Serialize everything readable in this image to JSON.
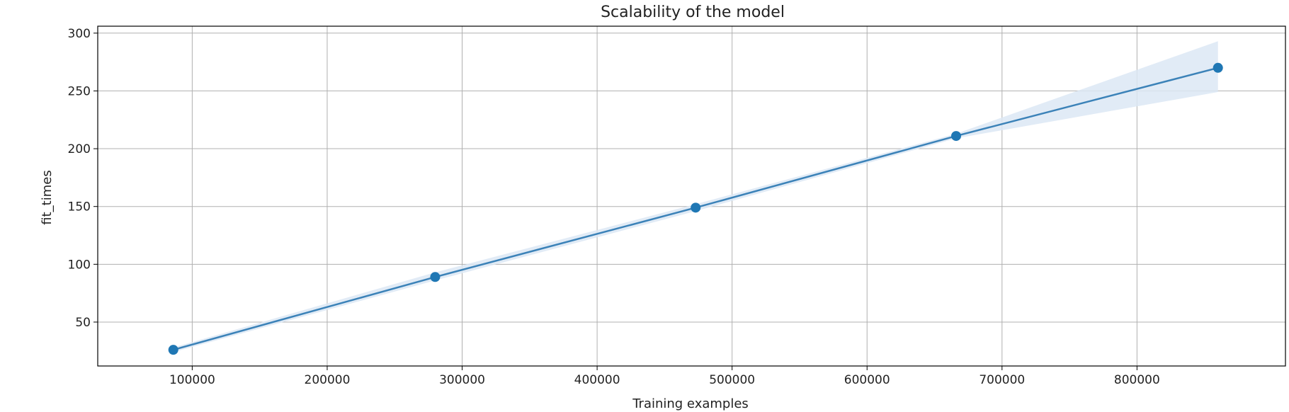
{
  "chart_data": {
    "type": "line",
    "title": "Scalability of the model",
    "xlabel": "Training examples",
    "ylabel": "fit_times",
    "x": [
      86000,
      280000,
      473000,
      666000,
      860000
    ],
    "series": [
      {
        "values": [
          26,
          89,
          149,
          211,
          270
        ],
        "band_lower": [
          24,
          86,
          146,
          209,
          249
        ],
        "band_upper": [
          28,
          93,
          152,
          213,
          293
        ]
      }
    ],
    "xlim": [
      30000,
      910000
    ],
    "ylim": [
      12,
      306
    ],
    "xticks": [
      100000,
      200000,
      300000,
      400000,
      500000,
      600000,
      700000,
      800000
    ],
    "xtick_labels": [
      "100000",
      "200000",
      "300000",
      "400000",
      "500000",
      "600000",
      "700000",
      "800000"
    ],
    "yticks": [
      50,
      100,
      150,
      200,
      250,
      300
    ],
    "ytick_labels": [
      "50",
      "100",
      "150",
      "200",
      "250",
      "300"
    ],
    "grid": true,
    "colors": {
      "line": "#3b82b8",
      "marker": "#1f77b4",
      "band": "#dce8f5",
      "grid": "#b0b0b0",
      "axis": "#000000"
    }
  }
}
